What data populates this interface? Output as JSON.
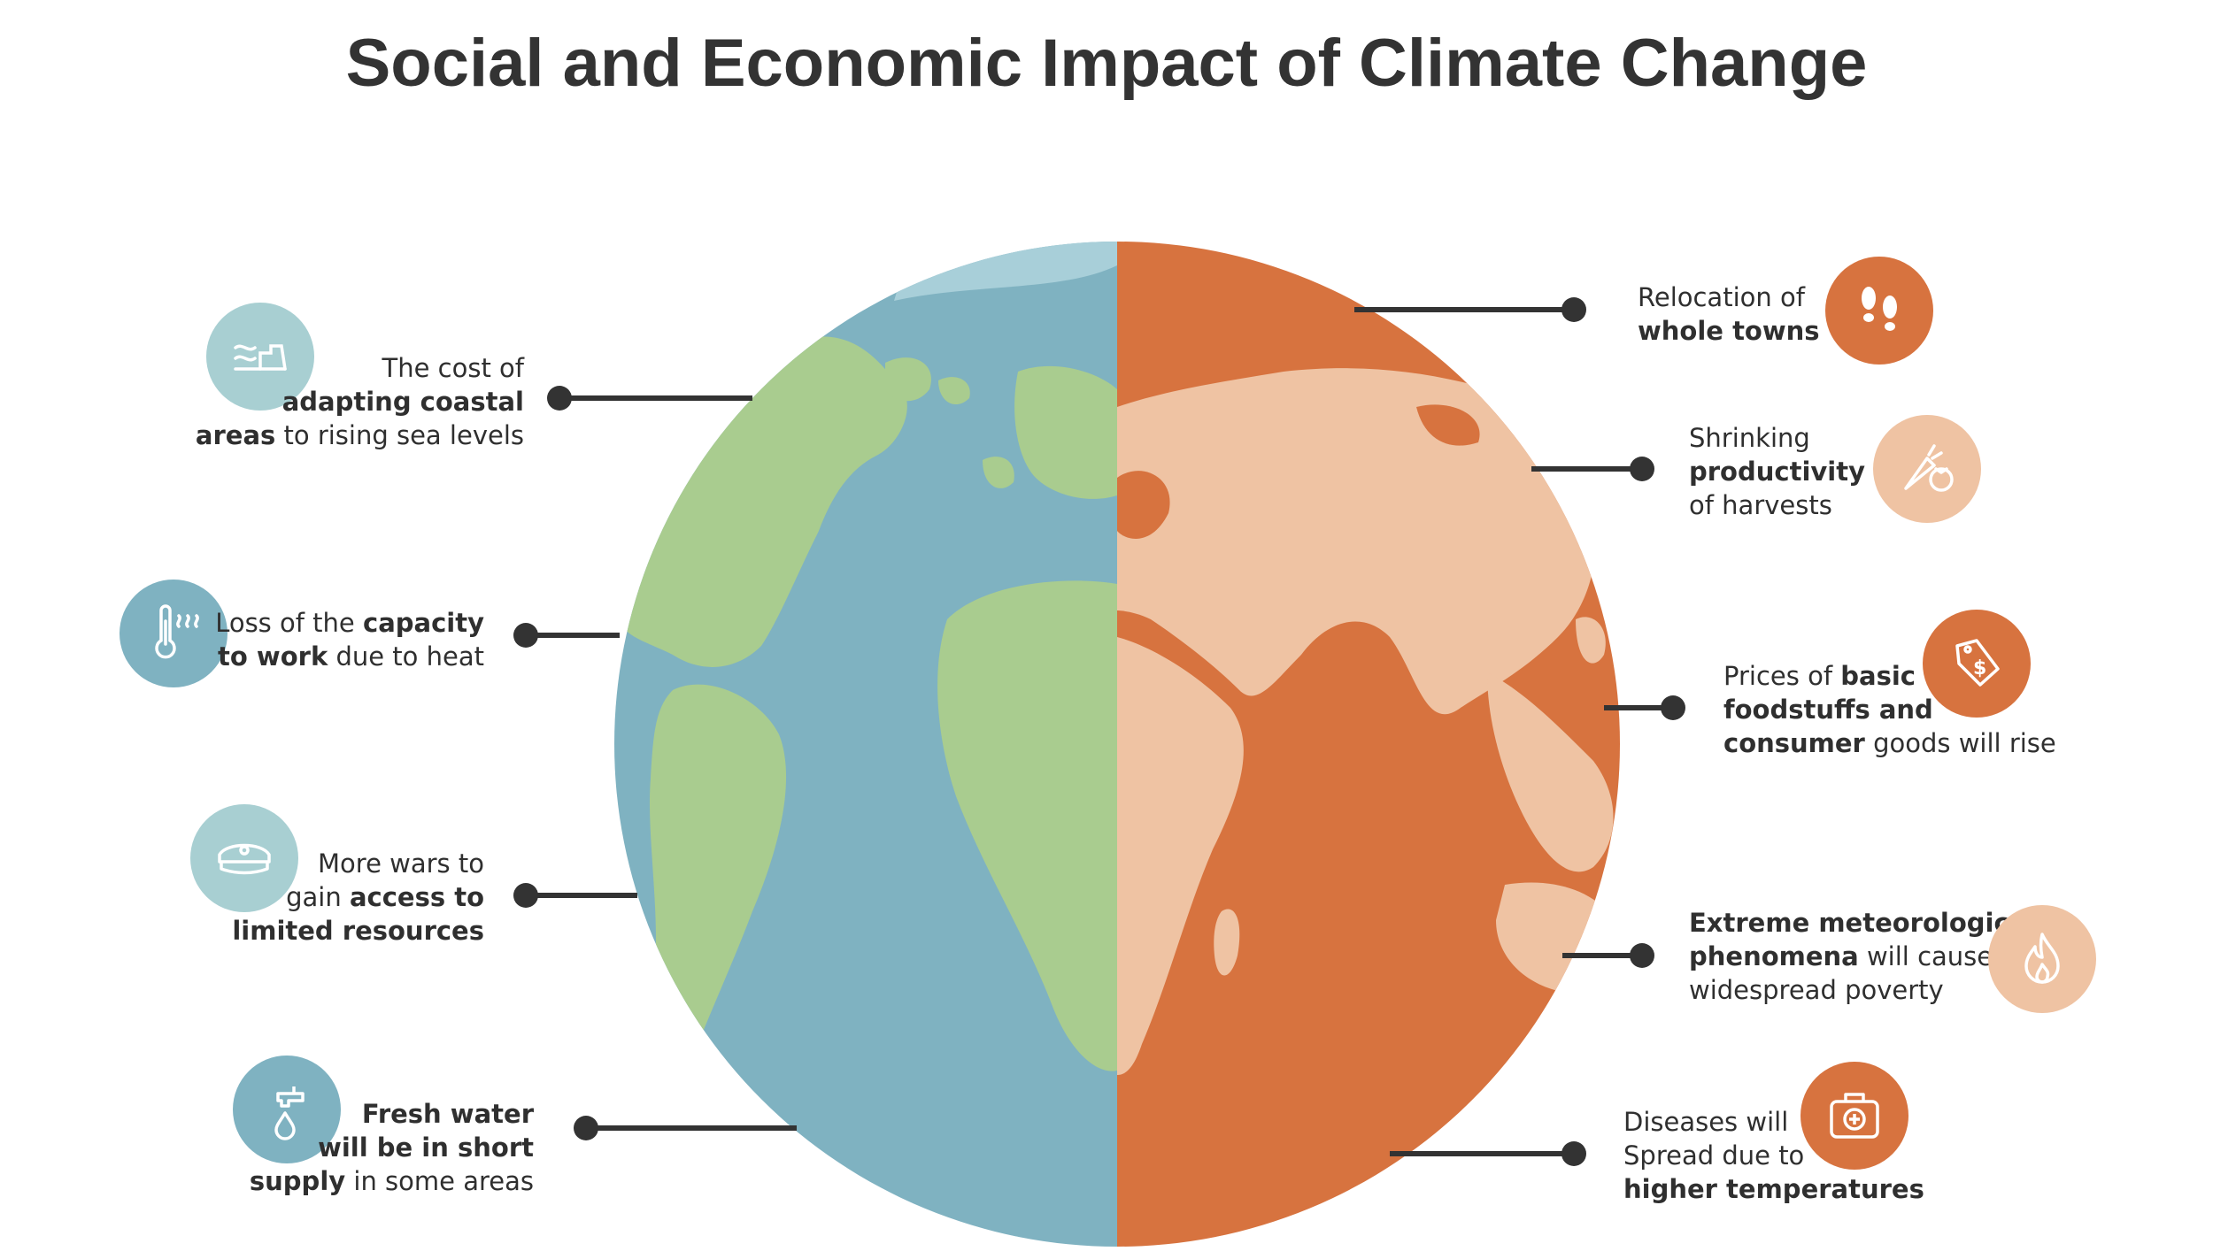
{
  "title": "Social and Economic Impact of Climate Change",
  "colors": {
    "ocean": "#7fb2c1",
    "ocean_light": "#a8cfd9",
    "land_green": "#a9cc8f",
    "ocean_warm": "#d7733f",
    "land_warm": "#efc3a3",
    "connector": "#333333",
    "icon_teal_light": "#a8cfd2",
    "icon_teal": "#7fb2c1",
    "icon_orange": "#d7733f",
    "icon_peach": "#efc3a3"
  },
  "left_items": [
    {
      "icon": "coastal-wave-icon",
      "parts": [
        [
          "The cost of",
          ""
        ],
        [
          "",
          "adapting coastal"
        ],
        [
          "areas",
          " to rising sea levels"
        ]
      ]
    },
    {
      "icon": "thermometer-heat-icon",
      "parts": [
        [
          "Loss of the ",
          "capacity"
        ],
        [
          "to work",
          " due to heat"
        ]
      ]
    },
    {
      "icon": "military-cap-icon",
      "parts": [
        [
          "More wars to",
          ""
        ],
        [
          "gain ",
          "access to"
        ],
        [
          "",
          "limited resources"
        ]
      ]
    },
    {
      "icon": "water-tap-icon",
      "parts": [
        [
          "",
          "Fresh water"
        ],
        [
          "",
          "will be in short"
        ],
        [
          "supply",
          " in some areas"
        ]
      ]
    }
  ],
  "right_items": [
    {
      "icon": "footprints-icon",
      "parts": [
        [
          "Relocation of",
          ""
        ],
        [
          "",
          "whole towns"
        ]
      ]
    },
    {
      "icon": "harvest-vegetables-icon",
      "parts": [
        [
          "Shrinking",
          ""
        ],
        [
          "",
          "productivity"
        ],
        [
          "of harvests",
          ""
        ]
      ]
    },
    {
      "icon": "price-tag-dollar-icon",
      "parts": [
        [
          "Prices of ",
          "basic"
        ],
        [
          "",
          "foodstuffs and"
        ],
        [
          "consumer",
          " goods will rise"
        ]
      ]
    },
    {
      "icon": "fire-icon",
      "parts": [
        [
          "",
          "Extreme meteorological"
        ],
        [
          "phenomena",
          " will cause"
        ],
        [
          "widespread poverty",
          ""
        ]
      ]
    },
    {
      "icon": "first-aid-kit-icon",
      "parts": [
        [
          "Diseases will",
          ""
        ],
        [
          "Spread due to",
          ""
        ],
        [
          "",
          "higher temperatures"
        ]
      ]
    }
  ]
}
